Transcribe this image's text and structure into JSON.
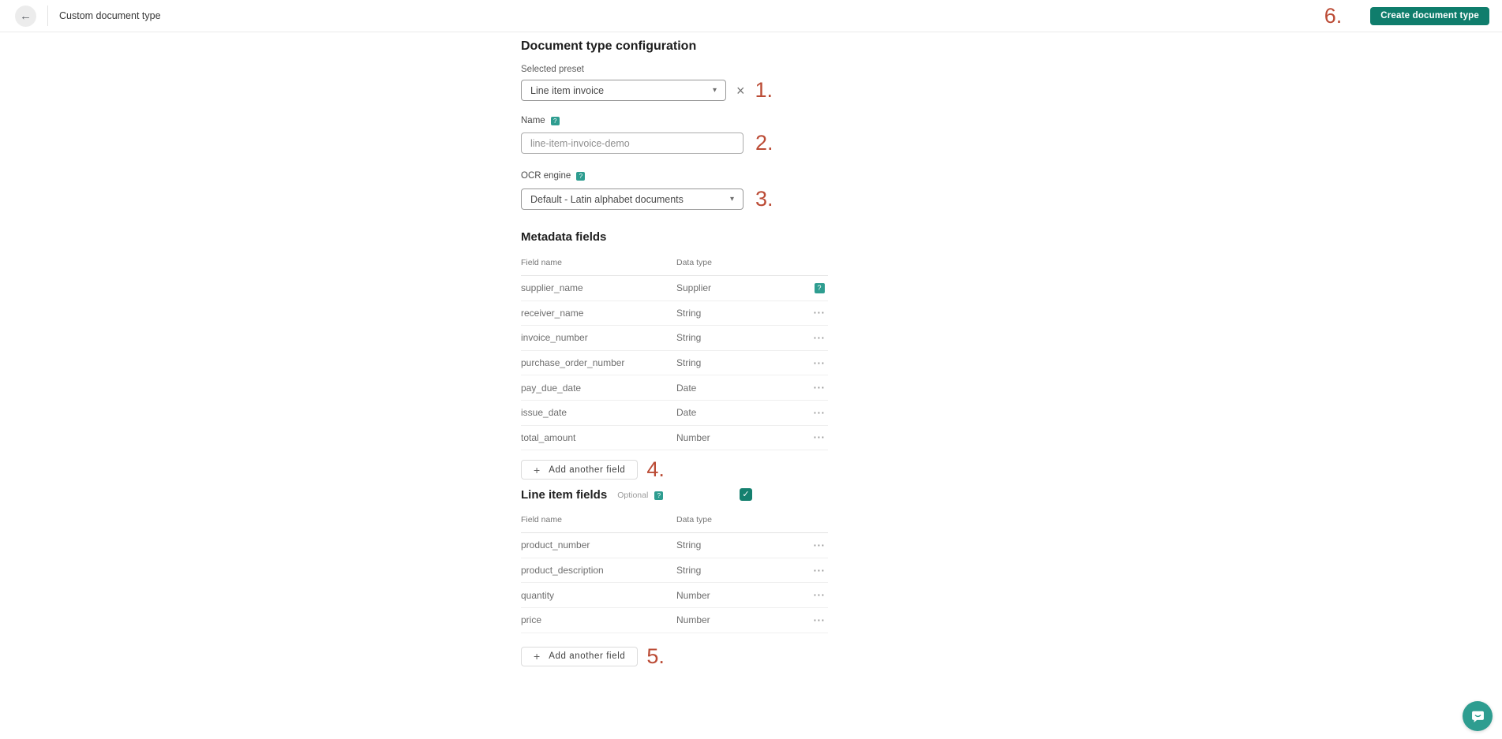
{
  "colors": {
    "accent_teal": "#0F7D6C",
    "badge_teal": "#2E9D90",
    "checkbox_teal": "#15806F",
    "chat_teal": "#2E9D90",
    "annotation_red": "#BB4B35"
  },
  "icons": {
    "back": "←",
    "chevron_down": "▾",
    "clear": "×",
    "plus": "+",
    "help": "?",
    "menu": "⋯",
    "check": "✓"
  },
  "header": {
    "title": "Custom document type",
    "create_button_label": "Create document type",
    "annotation": "6."
  },
  "form": {
    "title": "Document type configuration",
    "preset": {
      "label": "Selected preset",
      "value": "Line item invoice",
      "annotation": "1."
    },
    "name": {
      "label": "Name",
      "value": "line-item-invoice-demo",
      "annotation": "2."
    },
    "ocr": {
      "label": "OCR engine",
      "value": "Default - Latin alphabet documents",
      "annotation": "3."
    }
  },
  "metadata_fields": {
    "title": "Metadata fields",
    "columns": {
      "name": "Field name",
      "type": "Data type"
    },
    "rows": [
      {
        "name": "supplier_name",
        "type": "Supplier",
        "action": "help"
      },
      {
        "name": "receiver_name",
        "type": "String",
        "action": "menu"
      },
      {
        "name": "invoice_number",
        "type": "String",
        "action": "menu"
      },
      {
        "name": "purchase_order_number",
        "type": "String",
        "action": "menu"
      },
      {
        "name": "pay_due_date",
        "type": "Date",
        "action": "menu"
      },
      {
        "name": "issue_date",
        "type": "Date",
        "action": "menu"
      },
      {
        "name": "total_amount",
        "type": "Number",
        "action": "menu"
      }
    ],
    "add_button_label": "Add another field",
    "annotation": "4."
  },
  "line_item_fields": {
    "title": "Line item fields",
    "optional_label": "Optional",
    "checkbox_checked": true,
    "columns": {
      "name": "Field name",
      "type": "Data type"
    },
    "rows": [
      {
        "name": "product_number",
        "type": "String",
        "action": "menu"
      },
      {
        "name": "product_description",
        "type": "String",
        "action": "menu"
      },
      {
        "name": "quantity",
        "type": "Number",
        "action": "menu"
      },
      {
        "name": "price",
        "type": "Number",
        "action": "menu"
      }
    ],
    "add_button_label": "Add another field",
    "annotation": "5."
  }
}
